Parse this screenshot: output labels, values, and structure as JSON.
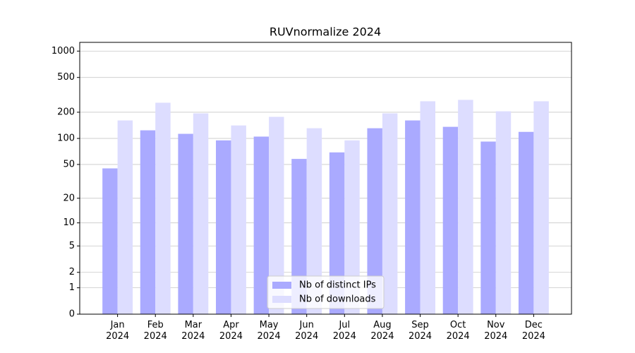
{
  "chart_data": {
    "type": "bar",
    "title": "RUVnormalize 2024",
    "categories": [
      "Jan\n2024",
      "Feb\n2024",
      "Mar\n2024",
      "Apr\n2024",
      "May\n2024",
      "Jun\n2024",
      "Jul\n2024",
      "Aug\n2024",
      "Sep\n2024",
      "Oct\n2024",
      "Nov\n2024",
      "Dec\n2024"
    ],
    "series": [
      {
        "name": "Nb of distinct IPs",
        "color": "#aaaaff",
        "values": [
          45,
          124,
          113,
          95,
          105,
          58,
          69,
          131,
          161,
          136,
          92,
          119
        ]
      },
      {
        "name": "Nb of downloads",
        "color": "#ddddff",
        "values": [
          161,
          257,
          194,
          141,
          177,
          131,
          95,
          194,
          267,
          277,
          205,
          267
        ]
      }
    ],
    "yscale": "log1p",
    "ylim": [
      0,
      1258
    ],
    "yticks": [
      0,
      1,
      2,
      5,
      10,
      20,
      50,
      100,
      200,
      500,
      1000
    ],
    "grid": true,
    "legend": "lower center"
  }
}
